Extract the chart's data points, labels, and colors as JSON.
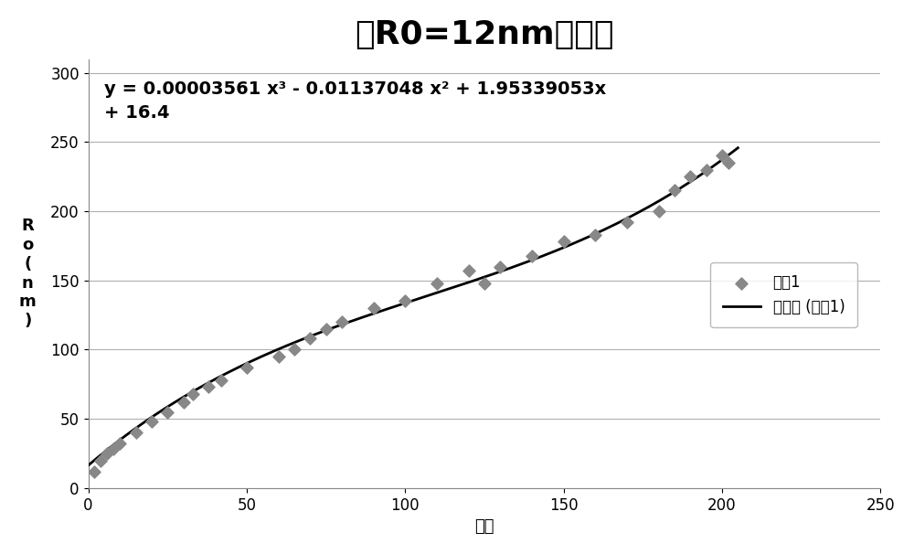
{
  "title": "以R0=12nm为基准",
  "xlabel": "倍数",
  "ylabel_chars": [
    "R",
    "o",
    "(",
    "n",
    "m",
    ")"
  ],
  "equation_line1": "y = 0.00003561 x³ - 0.01137048 x² + 1.95339053x",
  "equation_line2": "+ 16.4",
  "poly_coeffs": [
    3.561e-05,
    -0.01137048,
    1.95339053,
    16.4
  ],
  "scatter_x": [
    2,
    4,
    6,
    8,
    10,
    15,
    20,
    25,
    30,
    33,
    38,
    42,
    50,
    60,
    65,
    70,
    75,
    80,
    90,
    100,
    110,
    120,
    125,
    130,
    140,
    150,
    160,
    170,
    180,
    185,
    190,
    195,
    200,
    202
  ],
  "scatter_y": [
    12,
    20,
    25,
    28,
    32,
    40,
    48,
    55,
    62,
    68,
    73,
    78,
    87,
    95,
    100,
    108,
    115,
    120,
    130,
    135,
    148,
    157,
    148,
    160,
    168,
    178,
    183,
    192,
    200,
    215,
    225,
    230,
    240,
    235
  ],
  "xlim": [
    0,
    250
  ],
  "ylim": [
    0,
    310
  ],
  "xticks": [
    0,
    50,
    100,
    150,
    200,
    250
  ],
  "yticks": [
    0,
    50,
    100,
    150,
    200,
    250,
    300
  ],
  "legend_scatter": "系列1",
  "legend_line": "多项式 (系列1)",
  "scatter_color": "#888888",
  "line_color": "#000000",
  "background_color": "#ffffff",
  "plot_bg_color": "#ffffff",
  "grid_color": "#b0b0b0",
  "title_fontsize": 26,
  "label_fontsize": 13,
  "tick_fontsize": 12,
  "eq_fontsize": 14
}
